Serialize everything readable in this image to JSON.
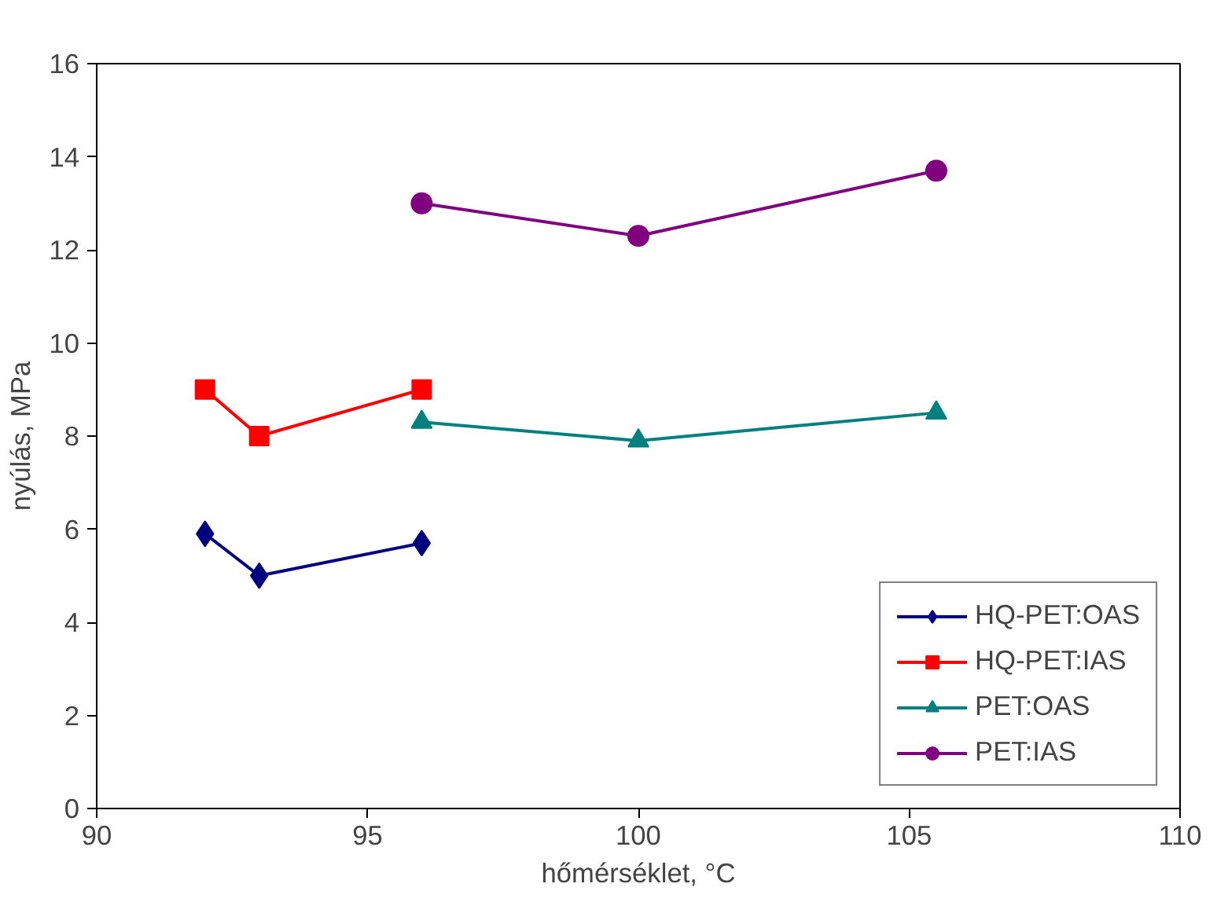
{
  "chart_data": {
    "type": "line",
    "xlabel": "hőmérséklet, °C",
    "ylabel": "nyúlás, MPa",
    "xlim": [
      90,
      110
    ],
    "xticks": [
      90,
      95,
      100,
      105,
      110
    ],
    "ylim": [
      0,
      16
    ],
    "yticks": [
      0,
      2,
      4,
      6,
      8,
      10,
      12,
      14,
      16
    ],
    "grid": false,
    "legend": "bottom right",
    "series": [
      {
        "name": "HQ-PET:OAS",
        "color": "#000080",
        "marker": "diamond",
        "x": [
          92,
          93,
          96
        ],
        "values": [
          5.9,
          5.0,
          5.7
        ]
      },
      {
        "name": "HQ-PET:IAS",
        "color": "#ff0000",
        "marker": "square",
        "x": [
          92,
          93,
          96
        ],
        "values": [
          9.0,
          8.0,
          9.0
        ]
      },
      {
        "name": "PET:OAS",
        "color": "#008080",
        "marker": "triangle",
        "x": [
          96,
          100,
          105.5
        ],
        "values": [
          8.3,
          7.9,
          8.5
        ]
      },
      {
        "name": "PET:IAS",
        "color": "#800080",
        "marker": "circle",
        "x": [
          96,
          100,
          105.5
        ],
        "values": [
          13.0,
          12.3,
          13.7
        ]
      }
    ]
  }
}
